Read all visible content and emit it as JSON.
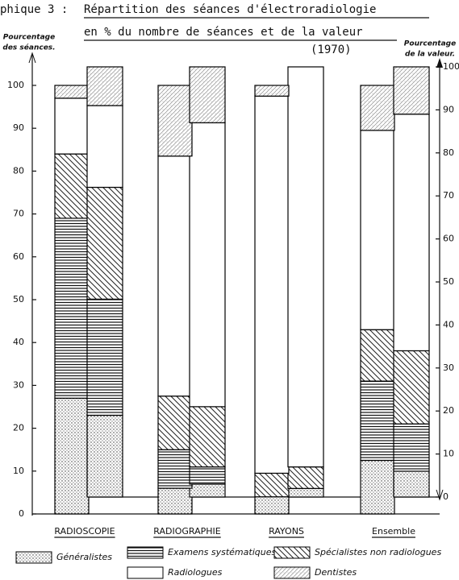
{
  "chart_data": {
    "type": "bar",
    "stacked": true,
    "label": "phique 3 :",
    "title": "Répartition des séances d'électroradiologie",
    "subtitle": "en % du nombre de séances et de la valeur",
    "year": "(1970)",
    "y_label": [
      "Pourcentage",
      "des séances."
    ],
    "y2_label": [
      "Pourcentage",
      "de la valeur."
    ],
    "categories": [
      "RADIOSCOPIE",
      "RADIOGRAPHIE",
      "RAYONS",
      "Ensemble"
    ],
    "series": [
      {
        "name": "Généralistes",
        "pattern": "dots",
        "color": "#000000",
        "values": [
          27,
          6,
          4,
          12.5
        ],
        "values_y2": [
          19,
          3,
          2,
          6
        ]
      },
      {
        "name": "Examens systématiques",
        "pattern": "hlines",
        "color": "#000000",
        "values": [
          42,
          9,
          0,
          18.5
        ],
        "values_y2": [
          27,
          4,
          0,
          11
        ]
      },
      {
        "name": "Spécialistes non radiologues",
        "pattern": "hatch",
        "color": "#000000",
        "values": [
          15,
          12.5,
          5.5,
          12
        ],
        "values_y2": [
          26,
          14,
          5,
          17
        ]
      },
      {
        "name": "Radiologues",
        "pattern": "none",
        "color": "#000000",
        "values": [
          13,
          56,
          88,
          46.5
        ],
        "values_y2": [
          19,
          66,
          93,
          55
        ]
      },
      {
        "name": "Dentistes",
        "pattern": "light-hatch",
        "color": "#000000",
        "values": [
          3,
          16.5,
          2.5,
          10.5
        ],
        "values_y2": [
          9,
          13,
          0,
          11
        ]
      }
    ],
    "ylim": [
      0,
      100
    ],
    "yticks": [
      0,
      10,
      20,
      30,
      40,
      50,
      60,
      70,
      80,
      90,
      100
    ],
    "y2lim": [
      0,
      100
    ],
    "y2ticks": [
      0,
      10,
      20,
      30,
      40,
      50,
      60,
      70,
      80,
      90,
      100
    ],
    "grid": false
  }
}
